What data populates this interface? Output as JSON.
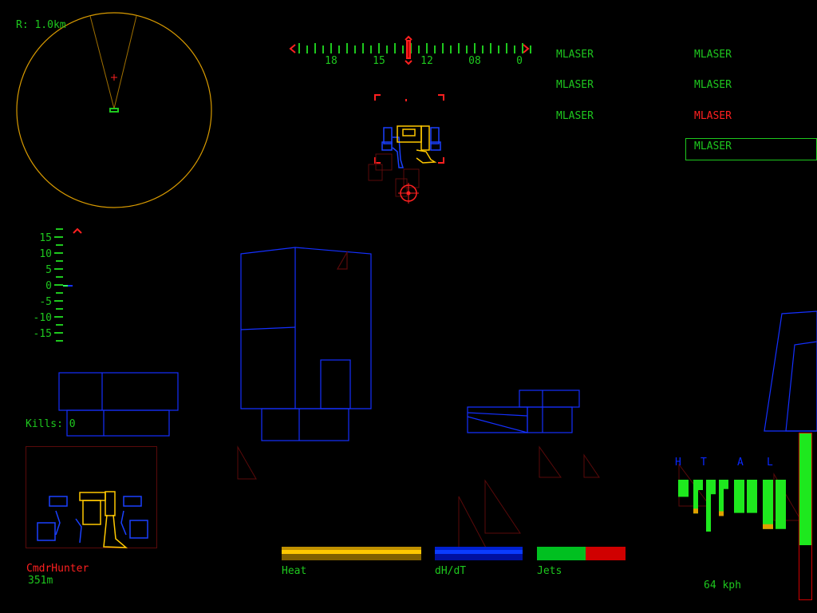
{
  "radar": {
    "range_label": "R: 1.0km"
  },
  "compass": {
    "labels": [
      "18",
      "15",
      "12",
      "08",
      "0"
    ]
  },
  "pitch_ladder": {
    "labels": [
      "15",
      "10",
      "5",
      "0",
      "-5",
      "-10",
      "-15"
    ]
  },
  "weapons": [
    {
      "label": "MLASER",
      "status": "ready"
    },
    {
      "label": "MLASER",
      "status": "ready"
    },
    {
      "label": "MLASER",
      "status": "ready"
    },
    {
      "label": "MLASER",
      "status": "ready"
    },
    {
      "label": "MLASER",
      "status": "ready"
    },
    {
      "label": "MLASER",
      "status": "recharging"
    },
    {
      "label": "MLASER",
      "status": "selected"
    }
  ],
  "kills": "Kills: 0",
  "target": {
    "name": "CmdrHunter",
    "distance": "351m"
  },
  "gauges": {
    "heat": {
      "label": "Heat",
      "level": 1.0,
      "color": "#ffc800"
    },
    "dhdt": {
      "label": "dH/dT",
      "level": 1.0,
      "color": "#0a3cff"
    },
    "jets": {
      "label": "Jets",
      "level": 0.55,
      "color": "#00ff40",
      "empty_color": "#ff1a1a"
    }
  },
  "armor": {
    "section_labels": [
      "H",
      "T",
      "A",
      "L"
    ],
    "levels": [
      0.33,
      0.65,
      0.2,
      1.0,
      0.28,
      0.7,
      0.18,
      0.64,
      0.64,
      0.95,
      0.95
    ],
    "colors": {
      "ok": "#1ee81e",
      "damaged": "#e0a000"
    }
  },
  "speed": {
    "label": "64 kph",
    "throttle_level": 0.67
  },
  "colors": {
    "hud_green": "#1ec81e",
    "radar": "#d89a00",
    "alert": "#ff2020",
    "scenery": "#1430ff"
  }
}
